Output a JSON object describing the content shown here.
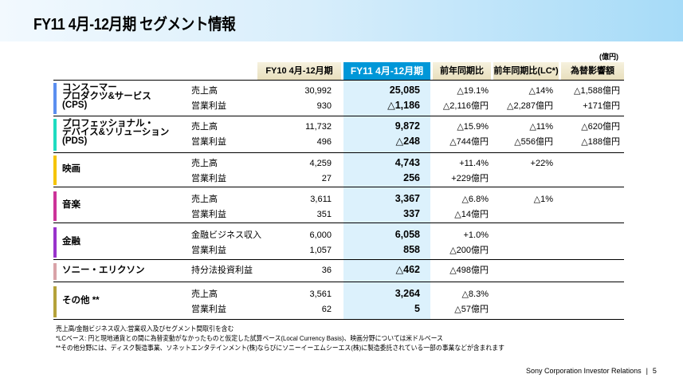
{
  "header": {
    "title": "FY11 4月-12月期  セグメント情報"
  },
  "table": {
    "unit": "(億円)",
    "columns": [
      "FY10 4月-12月期",
      "FY11 4月-12月期",
      "前年同期比",
      "前年同期比(LC*)",
      "為替影響額"
    ],
    "segments": [
      {
        "name_lines": [
          "コンスーマー",
          "プロダクツ&サービス",
          "(CPS)"
        ],
        "color": "#5b8ff0",
        "rows": [
          {
            "label": "売上高",
            "fy10": "30,992",
            "fy11": "25,085",
            "yoy": "△19.1%",
            "yoy_lc": "△14%",
            "fx": "△1,588億円"
          },
          {
            "label": "営業利益",
            "fy10": "930",
            "fy11": "△1,186",
            "yoy": "△2,116億円",
            "yoy_lc": "△2,287億円",
            "fx": "+171億円"
          }
        ]
      },
      {
        "name_lines": [
          "プロフェッショナル・",
          "デバイス&ソリューション",
          "(PDS)"
        ],
        "color": "#1fdcc0",
        "rows": [
          {
            "label": "売上高",
            "fy10": "11,732",
            "fy11": "9,872",
            "yoy": "△15.9%",
            "yoy_lc": "△11%",
            "fx": "△620億円"
          },
          {
            "label": "営業利益",
            "fy10": "496",
            "fy11": "△248",
            "yoy": "△744億円",
            "yoy_lc": "△556億円",
            "fx": "△188億円"
          }
        ]
      },
      {
        "name_lines": [
          "映画"
        ],
        "color": "#f5c400",
        "rows": [
          {
            "label": "売上高",
            "fy10": "4,259",
            "fy11": "4,743",
            "yoy": "+11.4%",
            "yoy_lc": "+22%",
            "fx": ""
          },
          {
            "label": "営業利益",
            "fy10": "27",
            "fy11": "256",
            "yoy": "+229億円",
            "yoy_lc": "",
            "fx": ""
          }
        ]
      },
      {
        "name_lines": [
          "音楽"
        ],
        "color": "#cc3399",
        "rows": [
          {
            "label": "売上高",
            "fy10": "3,611",
            "fy11": "3,367",
            "yoy": "△6.8%",
            "yoy_lc": "△1%",
            "fx": ""
          },
          {
            "label": "営業利益",
            "fy10": "351",
            "fy11": "337",
            "yoy": "△14億円",
            "yoy_lc": "",
            "fx": ""
          }
        ]
      },
      {
        "name_lines": [
          "金融"
        ],
        "color": "#9933cc",
        "rows": [
          {
            "label": "金融ビジネス収入",
            "fy10": "6,000",
            "fy11": "6,058",
            "yoy": "+1.0%",
            "yoy_lc": "",
            "fx": ""
          },
          {
            "label": "営業利益",
            "fy10": "1,057",
            "fy11": "858",
            "yoy": "△200億円",
            "yoy_lc": "",
            "fx": ""
          }
        ]
      },
      {
        "name_lines": [
          "ソニー・エリクソン"
        ],
        "color": "#d9a3a8",
        "rows": [
          {
            "label": "持分法投資利益",
            "fy10": "36",
            "fy11": "△462",
            "yoy": "△498億円",
            "yoy_lc": "",
            "fx": ""
          }
        ]
      },
      {
        "name_lines": [
          "その他 **"
        ],
        "color": "#b5a23a",
        "rows": [
          {
            "label": "売上高",
            "fy10": "3,561",
            "fy11": "3,264",
            "yoy": "△8.3%",
            "yoy_lc": "",
            "fx": ""
          },
          {
            "label": "営業利益",
            "fy10": "62",
            "fy11": "5",
            "yoy": "△57億円",
            "yoy_lc": "",
            "fx": ""
          }
        ]
      }
    ]
  },
  "notes": [
    " 売上高/金融ビジネス収入:営業収入及びセグメント間取引を含む",
    "*LCベース: 円と現地通貨との間に為替変動がなかったものと仮定した試算ベース(Local Currency Basis)、映画分野については米ドルベース",
    "**その他分野には、ディスク製造事業、ソネットエンタテインメント(株)ならびにソニーイーエムシーエス(株)に製造委託されている一部の事業などが含まれます"
  ],
  "footer": {
    "company": "Sony Corporation  Investor Relations",
    "separator": "|",
    "page": "5"
  }
}
